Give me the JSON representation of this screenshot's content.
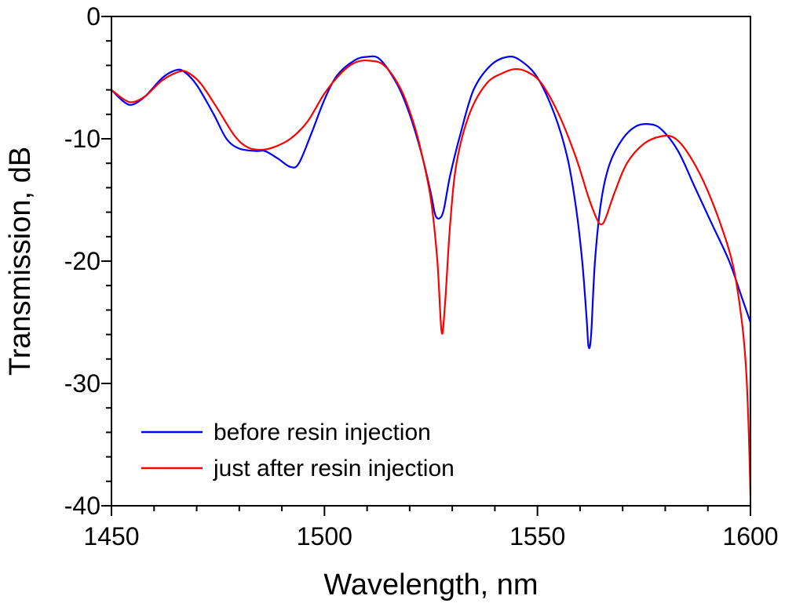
{
  "chart_data": {
    "type": "line",
    "title": "",
    "xlabel": "Wavelength, nm",
    "ylabel": "Transmission, dB",
    "xlim": [
      1450,
      1600
    ],
    "ylim": [
      -40,
      0
    ],
    "x_ticks": [
      1450,
      1500,
      1550,
      1600
    ],
    "x_tick_labels": [
      "1450",
      "1500",
      "1550",
      "1600"
    ],
    "y_ticks": [
      0,
      -10,
      -20,
      -30,
      -40
    ],
    "y_tick_labels": [
      "0",
      "-10",
      "-20",
      "-30",
      "-40"
    ],
    "x_minor_step": 10,
    "y_minor_step": 2,
    "grid": false,
    "legend_position": "bottom-left",
    "series": [
      {
        "name": "before resin injection",
        "color": "#0000ff",
        "points": [
          [
            1450,
            -6.0
          ],
          [
            1453,
            -7.0
          ],
          [
            1455,
            -7.2
          ],
          [
            1458,
            -6.5
          ],
          [
            1462,
            -5.0
          ],
          [
            1465,
            -4.4
          ],
          [
            1467,
            -4.5
          ],
          [
            1470,
            -5.6
          ],
          [
            1474,
            -8.0
          ],
          [
            1477,
            -10.0
          ],
          [
            1480,
            -10.8
          ],
          [
            1484,
            -11.0
          ],
          [
            1486,
            -11.0
          ],
          [
            1489,
            -11.6
          ],
          [
            1492,
            -12.3
          ],
          [
            1494,
            -12.0
          ],
          [
            1497,
            -9.5
          ],
          [
            1500,
            -6.8
          ],
          [
            1503,
            -4.8
          ],
          [
            1507,
            -3.6
          ],
          [
            1510,
            -3.3
          ],
          [
            1513,
            -3.5
          ],
          [
            1517,
            -5.5
          ],
          [
            1520,
            -8.0
          ],
          [
            1523,
            -11.5
          ],
          [
            1525,
            -14.5
          ],
          [
            1526,
            -16.2
          ],
          [
            1527,
            -16.5
          ],
          [
            1528,
            -15.8
          ],
          [
            1529.5,
            -13.0
          ],
          [
            1532,
            -9.5
          ],
          [
            1535,
            -6.0
          ],
          [
            1539,
            -4.0
          ],
          [
            1543,
            -3.3
          ],
          [
            1546,
            -3.6
          ],
          [
            1550,
            -5.0
          ],
          [
            1554,
            -8.0
          ],
          [
            1557,
            -11.5
          ],
          [
            1559,
            -15.5
          ],
          [
            1560.5,
            -20.0
          ],
          [
            1561.5,
            -24.5
          ],
          [
            1562,
            -27.0
          ],
          [
            1562.6,
            -26.0
          ],
          [
            1563.5,
            -20.0
          ],
          [
            1565,
            -15.0
          ],
          [
            1567,
            -12.0
          ],
          [
            1570,
            -10.0
          ],
          [
            1573,
            -9.0
          ],
          [
            1576,
            -8.8
          ],
          [
            1579,
            -9.2
          ],
          [
            1583,
            -11.0
          ],
          [
            1587,
            -14.0
          ],
          [
            1591,
            -17.0
          ],
          [
            1595,
            -20.0
          ],
          [
            1598,
            -23.0
          ],
          [
            1600,
            -25.0
          ]
        ]
      },
      {
        "name": "just after resin injection",
        "color": "#ff0000",
        "points": [
          [
            1450,
            -6.0
          ],
          [
            1453,
            -6.8
          ],
          [
            1455,
            -7.0
          ],
          [
            1458,
            -6.5
          ],
          [
            1462,
            -5.2
          ],
          [
            1466,
            -4.5
          ],
          [
            1468,
            -4.6
          ],
          [
            1471,
            -5.5
          ],
          [
            1475,
            -7.6
          ],
          [
            1479,
            -9.8
          ],
          [
            1482,
            -10.7
          ],
          [
            1485,
            -10.9
          ],
          [
            1488,
            -10.7
          ],
          [
            1492,
            -10.0
          ],
          [
            1496,
            -8.6
          ],
          [
            1500,
            -6.3
          ],
          [
            1504,
            -4.6
          ],
          [
            1507,
            -3.8
          ],
          [
            1510,
            -3.6
          ],
          [
            1514,
            -4.0
          ],
          [
            1518,
            -6.0
          ],
          [
            1521,
            -8.8
          ],
          [
            1523,
            -11.5
          ],
          [
            1525,
            -15.0
          ],
          [
            1526.5,
            -20.0
          ],
          [
            1527.5,
            -25.8
          ],
          [
            1528.3,
            -23.5
          ],
          [
            1529.5,
            -17.0
          ],
          [
            1531,
            -12.0
          ],
          [
            1534,
            -8.0
          ],
          [
            1538,
            -5.5
          ],
          [
            1542,
            -4.6
          ],
          [
            1545,
            -4.3
          ],
          [
            1548,
            -4.6
          ],
          [
            1551,
            -5.5
          ],
          [
            1555,
            -8.0
          ],
          [
            1559,
            -11.5
          ],
          [
            1562,
            -14.8
          ],
          [
            1564,
            -16.6
          ],
          [
            1565,
            -17.0
          ],
          [
            1566,
            -16.5
          ],
          [
            1568,
            -14.5
          ],
          [
            1571,
            -12.0
          ],
          [
            1575,
            -10.4
          ],
          [
            1579,
            -9.8
          ],
          [
            1582,
            -9.9
          ],
          [
            1585,
            -11.0
          ],
          [
            1589,
            -13.5
          ],
          [
            1593,
            -17.0
          ],
          [
            1596,
            -20.5
          ],
          [
            1598,
            -25.0
          ],
          [
            1599,
            -29.0
          ],
          [
            1599.6,
            -34.0
          ],
          [
            1600,
            -39.2
          ]
        ]
      }
    ]
  }
}
